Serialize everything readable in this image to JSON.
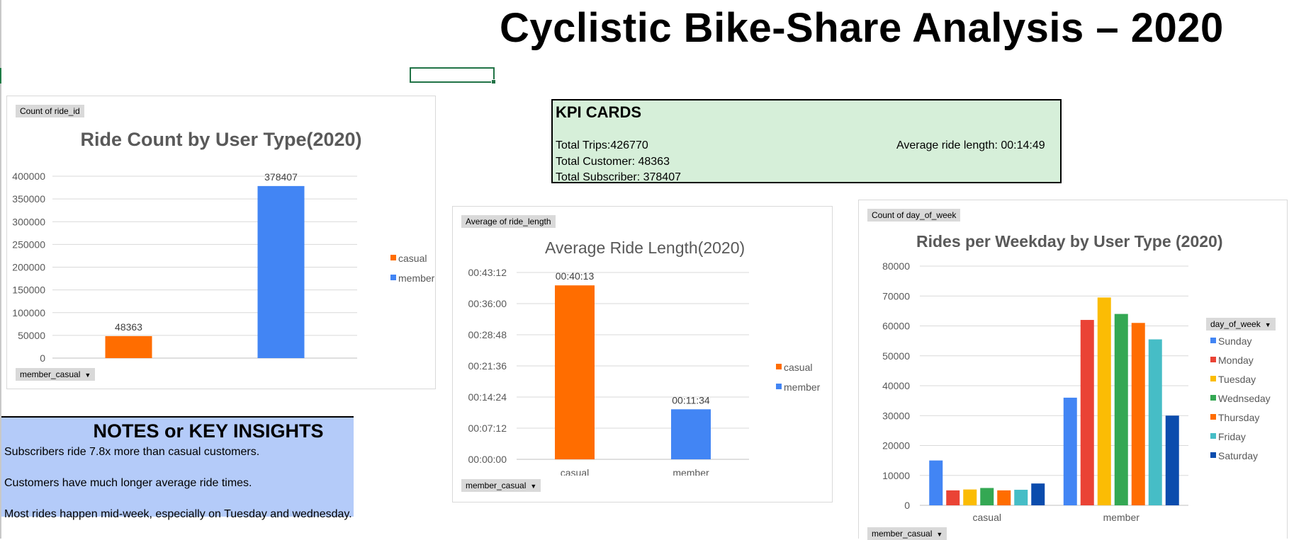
{
  "page": {
    "title": "Cyclistic Bike-Share Analysis – 2020"
  },
  "kpi": {
    "heading": "KPI CARDS",
    "total_trips": "Total Trips:426770",
    "total_customer": "Total Customer: 48363",
    "total_subscriber": "Total Subscriber: 378407",
    "average_ride_length": "Average ride length: 00:14:49"
  },
  "notes": {
    "heading": "NOTES or KEY INSIGHTS",
    "lines": [
      "Subscribers ride 7.8x more than casual customers.",
      "Customers have much longer average ride times.",
      "Most rides happen mid-week, especially on Tuesday and wednesday."
    ]
  },
  "colors": {
    "casual": "#ff6d00",
    "member": "#4285f4",
    "kpi_background": "#d6efd9",
    "notes_background": "#b4cbf9"
  },
  "chart_data": [
    {
      "type": "bar",
      "title": "Ride Count by User Type(2020)",
      "value_field": "Count of ride_id",
      "axis_field": "member_casual",
      "categories": [
        "casual",
        "member"
      ],
      "series": [
        {
          "name": "casual",
          "values": [
            48363,
            null
          ]
        },
        {
          "name": "member",
          "values": [
            null,
            378407
          ]
        }
      ],
      "data_labels": [
        "48363",
        "378407"
      ],
      "ylim": [
        0,
        400000
      ],
      "y_ticks": [
        "0",
        "50000",
        "100000",
        "150000",
        "200000",
        "250000",
        "300000",
        "350000",
        "400000"
      ],
      "grid": true,
      "legend": "right",
      "xlabel": "",
      "ylabel": ""
    },
    {
      "type": "bar",
      "title": "Average Ride Length(2020)",
      "value_field": "Average of ride_length",
      "axis_field": "member_casual",
      "categories": [
        "casual",
        "member"
      ],
      "series": [
        {
          "name": "casual",
          "values": [
            "00:40:13",
            null
          ]
        },
        {
          "name": "member",
          "values": [
            null,
            "00:11:34"
          ]
        }
      ],
      "data_labels": [
        "00:40:13",
        "00:11:34"
      ],
      "ylim": [
        "00:00:00",
        "00:43:12"
      ],
      "y_ticks": [
        "00:00:00",
        "00:07:12",
        "00:14:24",
        "00:21:36",
        "00:28:48",
        "00:36:00",
        "00:43:12"
      ],
      "grid": true,
      "legend": "right",
      "xlabel": "",
      "ylabel": ""
    },
    {
      "type": "bar",
      "title": "Rides per Weekday by User Type (2020)",
      "value_field": "Count of day_of_week",
      "axis_field": "member_casual",
      "legend_field": "day_of_week",
      "categories": [
        "casual",
        "member"
      ],
      "series": [
        {
          "name": "Sunday",
          "color": "#4285f4",
          "values": [
            15000,
            36000
          ]
        },
        {
          "name": "Monday",
          "color": "#ea4335",
          "values": [
            5000,
            62000
          ]
        },
        {
          "name": "Tuesday",
          "color": "#fbbc04",
          "values": [
            5300,
            69500
          ]
        },
        {
          "name": "Wednseday",
          "color": "#34a853",
          "values": [
            5800,
            64000
          ]
        },
        {
          "name": "Thursday",
          "color": "#ff6d01",
          "values": [
            5000,
            61000
          ]
        },
        {
          "name": "Friday",
          "color": "#46bdc6",
          "values": [
            5200,
            55500
          ]
        },
        {
          "name": "Saturday",
          "color": "#0b4cad",
          "values": [
            7300,
            30000
          ]
        }
      ],
      "ylim": [
        0,
        80000
      ],
      "y_ticks": [
        "0",
        "10000",
        "20000",
        "30000",
        "40000",
        "50000",
        "60000",
        "70000",
        "80000"
      ],
      "grid": true,
      "legend": "right",
      "xlabel": "",
      "ylabel": ""
    }
  ]
}
